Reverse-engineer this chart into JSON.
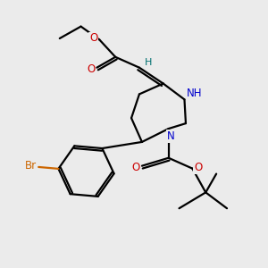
{
  "background_color": "#ebebeb",
  "C": "#000000",
  "N": "#0000cc",
  "O": "#cc0000",
  "Br": "#cc6600",
  "H": "#007070",
  "lw": 1.6,
  "fs": 8.5
}
